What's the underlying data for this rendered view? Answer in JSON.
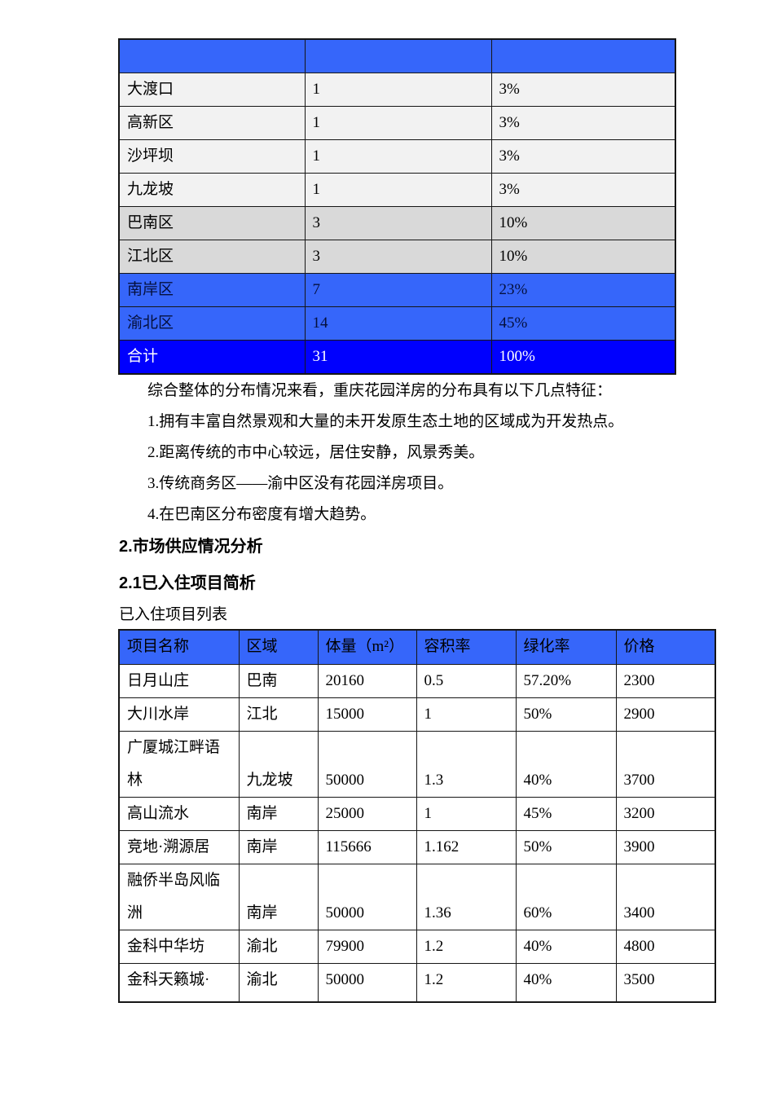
{
  "colors": {
    "header_blue": "#3666FA",
    "highlight_row_blue": "#3666FA",
    "total_row_blue": "#0000FE",
    "light_gray_row": "#F2F2F2",
    "dark_gray_row": "#D9D9D9",
    "border": "#161616"
  },
  "distribution_table": {
    "header": [
      "",
      "",
      ""
    ],
    "rows": [
      {
        "district": "大渡口",
        "count": "1",
        "share": "3%"
      },
      {
        "district": "高新区",
        "count": "1",
        "share": "3%"
      },
      {
        "district": "沙坪坝",
        "count": "1",
        "share": "3%"
      },
      {
        "district": "九龙坡",
        "count": "1",
        "share": "3%"
      },
      {
        "district": "巴南区",
        "count": "3",
        "share": "10%"
      },
      {
        "district": "江北区",
        "count": "3",
        "share": "10%"
      },
      {
        "district": "南岸区",
        "count": "7",
        "share": "23%"
      },
      {
        "district": "渝北区",
        "count": "14",
        "share": "45%"
      },
      {
        "district": "合计",
        "count": "31",
        "share": "100%"
      }
    ]
  },
  "summary": {
    "intro": "综合整体的分布情况来看，重庆花园洋房的分布具有以下几点特征：",
    "points": [
      "1.拥有丰富自然景观和大量的未开发原生态土地的区域成为开发热点。",
      "2.距离传统的市中心较远，居住安静，风景秀美。",
      "3.传统商务区——渝中区没有花园洋房项目。",
      "4.在巴南区分布密度有增大趋势。"
    ]
  },
  "headings": {
    "section": "2.市场供应情况分析",
    "subsection": "2.1已入住项目简析",
    "table_caption": "已入住项目列表"
  },
  "projects_table": {
    "columns": [
      "项目名称",
      "区域",
      "体量（m²）",
      "容积率",
      "绿化率",
      "价格"
    ],
    "rows": [
      {
        "name": "日月山庄",
        "district": "巴南",
        "volume": "20160",
        "plot_ratio": "0.5",
        "green_rate": "57.20%",
        "price": "2300"
      },
      {
        "name": "大川水岸",
        "district": "江北",
        "volume": "15000",
        "plot_ratio": "1",
        "green_rate": "50%",
        "price": "2900"
      },
      {
        "name": "广厦城江畔语\n林",
        "district": "九龙坡",
        "volume": "50000",
        "plot_ratio": "1.3",
        "green_rate": "40%",
        "price": "3700"
      },
      {
        "name": "高山流水",
        "district": "南岸",
        "volume": "25000",
        "plot_ratio": "1",
        "green_rate": "45%",
        "price": "3200"
      },
      {
        "name": "竞地·溯源居",
        "district": "南岸",
        "volume": "115666",
        "plot_ratio": "1.162",
        "green_rate": "50%",
        "price": "3900"
      },
      {
        "name": "融侨半岛风临\n洲",
        "district": "南岸",
        "volume": "50000",
        "plot_ratio": "1.36",
        "green_rate": "60%",
        "price": "3400"
      },
      {
        "name": "金科中华坊",
        "district": "渝北",
        "volume": "79900",
        "plot_ratio": "1.2",
        "green_rate": "40%",
        "price": "4800"
      },
      {
        "name": "金科天籁城·",
        "district": "渝北",
        "volume": "50000",
        "plot_ratio": "1.2",
        "green_rate": "40%",
        "price": "3500"
      }
    ]
  }
}
